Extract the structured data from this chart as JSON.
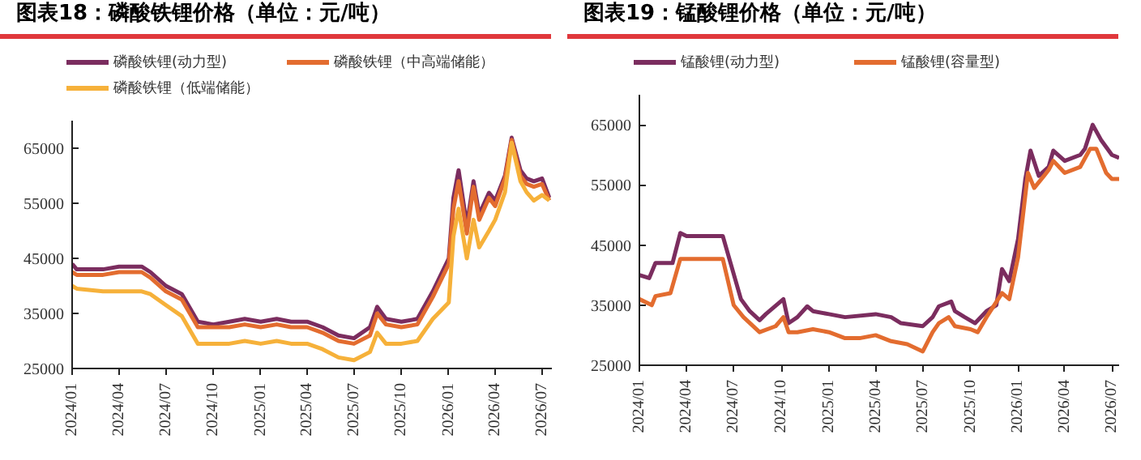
{
  "chart_data": [
    {
      "type": "line",
      "title": "图表18：磷酸铁锂价格（单位：元/吨）",
      "legend": "top",
      "xlim": [
        "2024-01-01",
        "2026-07-20"
      ],
      "ylim": [
        25000,
        70000
      ],
      "yticks": [
        25000,
        35000,
        45000,
        55000,
        65000
      ],
      "xticks": [
        {
          "value": "2024-01",
          "label": "2024/01"
        },
        {
          "value": "2024-04",
          "label": "2024/04"
        },
        {
          "value": "2024-07",
          "label": "2024/07"
        },
        {
          "value": "2024-10",
          "label": "2024/10"
        },
        {
          "value": "2025-01",
          "label": "2025/01"
        },
        {
          "value": "2025-04",
          "label": "2025/04"
        },
        {
          "value": "2025-07",
          "label": "2025/07"
        },
        {
          "value": "2025-10",
          "label": "2025/10"
        },
        {
          "value": "2026-01",
          "label": "2026/01"
        },
        {
          "value": "2026-04",
          "label": "2026/04"
        },
        {
          "value": "2026-07",
          "label": "2026/07"
        }
      ],
      "series": [
        {
          "name": "磷酸铁锂(动力型)",
          "color": "#7b2d5f",
          "x": [
            "2024-01-01",
            "2024-01-10",
            "2024-03-01",
            "2024-04-01",
            "2024-05-15",
            "2024-06-01",
            "2024-07-01",
            "2024-08-01",
            "2024-09-01",
            "2024-10-01",
            "2024-11-01",
            "2024-12-01",
            "2025-01-01",
            "2025-02-01",
            "2025-03-01",
            "2025-04-01",
            "2025-05-01",
            "2025-06-01",
            "2025-07-01",
            "2025-08-01",
            "2025-08-15",
            "2025-09-01",
            "2025-10-01",
            "2025-11-01",
            "2025-12-01",
            "2026-01-01",
            "2026-01-10",
            "2026-01-20",
            "2026-02-05",
            "2026-02-18",
            "2026-03-01",
            "2026-03-20",
            "2026-04-01",
            "2026-04-20",
            "2026-05-03",
            "2026-05-20",
            "2026-06-01",
            "2026-06-15",
            "2026-07-01",
            "2026-07-15"
          ],
          "values": [
            44000,
            43000,
            43000,
            43500,
            43500,
            42500,
            40000,
            38500,
            33500,
            33000,
            33500,
            34000,
            33500,
            34000,
            33500,
            33500,
            32500,
            31000,
            30500,
            32500,
            36200,
            34000,
            33500,
            34000,
            39000,
            45000,
            56000,
            61000,
            51000,
            59000,
            53000,
            56900,
            55500,
            60000,
            66900,
            61000,
            59500,
            59000,
            59500,
            56000
          ]
        },
        {
          "name": "磷酸铁锂（中高端储能）",
          "color": "#e36c2f",
          "x": [
            "2024-01-01",
            "2024-01-10",
            "2024-03-01",
            "2024-04-01",
            "2024-05-15",
            "2024-06-01",
            "2024-07-01",
            "2024-08-01",
            "2024-09-01",
            "2024-10-01",
            "2024-11-01",
            "2024-12-01",
            "2025-01-01",
            "2025-02-01",
            "2025-03-01",
            "2025-04-01",
            "2025-05-01",
            "2025-06-01",
            "2025-07-01",
            "2025-08-01",
            "2025-08-15",
            "2025-09-01",
            "2025-10-01",
            "2025-11-01",
            "2025-12-01",
            "2026-01-01",
            "2026-01-10",
            "2026-01-20",
            "2026-02-05",
            "2026-02-18",
            "2026-03-01",
            "2026-03-20",
            "2026-04-01",
            "2026-04-20",
            "2026-05-03",
            "2026-05-20",
            "2026-06-01",
            "2026-06-15",
            "2026-07-01",
            "2026-07-15"
          ],
          "values": [
            42500,
            42000,
            42000,
            42500,
            42500,
            41500,
            39000,
            37500,
            32500,
            32500,
            32500,
            33000,
            32500,
            33000,
            32500,
            32500,
            31500,
            30000,
            29500,
            31000,
            35000,
            33000,
            32500,
            33000,
            38000,
            44000,
            54000,
            59000,
            49500,
            58000,
            52000,
            56000,
            54500,
            59500,
            66500,
            60000,
            58500,
            58000,
            58500,
            55500
          ]
        },
        {
          "name": "磷酸铁锂（低端储能）",
          "color": "#f6b13a",
          "x": [
            "2024-01-01",
            "2024-01-10",
            "2024-03-01",
            "2024-04-01",
            "2024-05-15",
            "2024-06-01",
            "2024-07-01",
            "2024-08-01",
            "2024-09-01",
            "2024-10-01",
            "2024-11-01",
            "2024-12-01",
            "2025-01-01",
            "2025-02-01",
            "2025-03-01",
            "2025-04-01",
            "2025-05-01",
            "2025-06-01",
            "2025-07-01",
            "2025-08-01",
            "2025-08-15",
            "2025-09-01",
            "2025-10-01",
            "2025-11-01",
            "2025-12-01",
            "2026-01-01",
            "2026-01-10",
            "2026-01-20",
            "2026-02-05",
            "2026-02-18",
            "2026-03-01",
            "2026-03-20",
            "2026-04-01",
            "2026-04-20",
            "2026-05-03",
            "2026-05-20",
            "2026-06-01",
            "2026-06-15",
            "2026-07-01",
            "2026-07-15"
          ],
          "values": [
            40000,
            39500,
            39000,
            39000,
            39000,
            38500,
            36500,
            34500,
            29500,
            29500,
            29500,
            30000,
            29500,
            30000,
            29500,
            29500,
            28500,
            27000,
            26500,
            28000,
            31500,
            29500,
            29500,
            30000,
            34000,
            37000,
            49000,
            54000,
            45000,
            52000,
            47000,
            50000,
            52000,
            57000,
            66000,
            59000,
            57000,
            55500,
            56500,
            55500
          ]
        }
      ]
    },
    {
      "type": "line",
      "title": "图表19：锰酸锂价格（单位：元/吨）",
      "legend": "top",
      "xlim": [
        "2024-01-01",
        "2026-07-15"
      ],
      "ylim": [
        25000,
        70000
      ],
      "yticks": [
        25000,
        35000,
        45000,
        55000,
        65000
      ],
      "xticks": [
        {
          "value": "2024-01",
          "label": "2024/01"
        },
        {
          "value": "2024-04",
          "label": "2024/04"
        },
        {
          "value": "2024-07",
          "label": "2024/07"
        },
        {
          "value": "2024-10",
          "label": "2024/10"
        },
        {
          "value": "2025-01",
          "label": "2025/01"
        },
        {
          "value": "2025-04",
          "label": "2025/04"
        },
        {
          "value": "2025-07",
          "label": "2025/07"
        },
        {
          "value": "2025-10",
          "label": "2025/10"
        },
        {
          "value": "2026-01",
          "label": "2026/01"
        },
        {
          "value": "2026-04",
          "label": "2026/04"
        },
        {
          "value": "2026-07",
          "label": "2026/07"
        }
      ],
      "series": [
        {
          "name": "锰酸锂(动力型)",
          "color": "#7b2d5f",
          "x": [
            "2024-01-01",
            "2024-01-20",
            "2024-02-01",
            "2024-03-05",
            "2024-03-20",
            "2024-04-01",
            "2024-06-10",
            "2024-06-25",
            "2024-07-15",
            "2024-08-01",
            "2024-08-20",
            "2024-09-01",
            "2024-10-05",
            "2024-10-15",
            "2024-11-01",
            "2024-11-20",
            "2024-12-01",
            "2025-01-01",
            "2025-02-01",
            "2025-04-01",
            "2025-05-01",
            "2025-05-20",
            "2025-07-01",
            "2025-07-20",
            "2025-08-01",
            "2025-08-25",
            "2025-09-01",
            "2025-09-20",
            "2025-10-10",
            "2025-11-01",
            "2025-11-20",
            "2025-12-01",
            "2025-12-15",
            "2026-01-01",
            "2026-01-15",
            "2026-01-25",
            "2026-02-10",
            "2026-03-01",
            "2026-03-10",
            "2026-04-01",
            "2026-05-01",
            "2026-05-10",
            "2026-05-25",
            "2026-06-10",
            "2026-07-01",
            "2026-07-15"
          ],
          "values": [
            40000,
            39500,
            42000,
            42000,
            47000,
            46500,
            46500,
            42000,
            36000,
            34000,
            32500,
            33500,
            36000,
            32000,
            33000,
            34800,
            34000,
            33500,
            33000,
            33500,
            33000,
            32000,
            31500,
            33000,
            34800,
            35600,
            34000,
            33000,
            32000,
            34000,
            35000,
            41000,
            39000,
            46000,
            56000,
            60700,
            56500,
            58000,
            60700,
            59000,
            60000,
            61000,
            65000,
            62500,
            60000,
            59500
          ]
        },
        {
          "name": "锰酸锂(容量型)",
          "color": "#e36c2f",
          "x": [
            "2024-01-01",
            "2024-01-25",
            "2024-02-01",
            "2024-03-01",
            "2024-03-20",
            "2024-06-10",
            "2024-07-01",
            "2024-07-20",
            "2024-08-20",
            "2024-09-20",
            "2024-10-05",
            "2024-10-15",
            "2024-11-01",
            "2024-12-01",
            "2025-01-01",
            "2025-02-01",
            "2025-03-01",
            "2025-04-01",
            "2025-05-01",
            "2025-06-01",
            "2025-07-01",
            "2025-07-20",
            "2025-08-01",
            "2025-08-20",
            "2025-09-01",
            "2025-10-01",
            "2025-10-15",
            "2025-11-01",
            "2025-12-01",
            "2025-12-15",
            "2026-01-01",
            "2026-01-20",
            "2026-02-01",
            "2026-02-20",
            "2026-03-01",
            "2026-03-10",
            "2026-04-01",
            "2026-05-01",
            "2026-05-20",
            "2026-06-01",
            "2026-06-20",
            "2026-07-01",
            "2026-07-15"
          ],
          "values": [
            36000,
            35000,
            36500,
            37000,
            42700,
            42700,
            35000,
            33000,
            30500,
            31500,
            33000,
            30500,
            30500,
            31000,
            30500,
            29500,
            29500,
            30000,
            29000,
            28500,
            27300,
            30500,
            32000,
            33000,
            31500,
            31000,
            30500,
            33000,
            37000,
            36000,
            43000,
            57000,
            54500,
            56500,
            57500,
            59000,
            57000,
            58000,
            61000,
            61000,
            57000,
            56000,
            56000
          ]
        }
      ]
    }
  ]
}
